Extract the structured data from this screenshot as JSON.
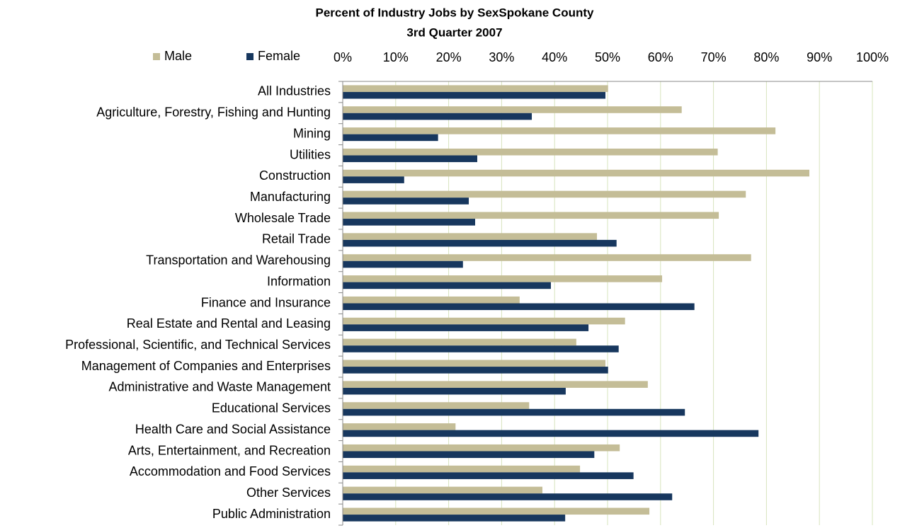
{
  "chart_data": {
    "type": "hbar",
    "title": "Percent of Industry Jobs by SexSpokane County",
    "subtitle": "3rd Quarter 2007",
    "categories": [
      "All Industries",
      "Agriculture, Forestry, Fishing and Hunting",
      "Mining",
      "Utilities",
      "Construction",
      "Manufacturing",
      "Wholesale Trade",
      "Retail Trade",
      "Transportation and Warehousing",
      "Information",
      "Finance and Insurance",
      "Real Estate and Rental and Leasing",
      "Professional, Scientific, and Technical Services",
      "Management of Companies and Enterprises",
      "Administrative and Waste Management",
      "Educational Services",
      "Health Care and Social Assistance",
      "Arts, Entertainment, and Recreation",
      "Accommodation and Food Services",
      "Other Services",
      "Public Administration"
    ],
    "series": [
      {
        "name": "Male",
        "color": "#c4bd97",
        "values": [
          50.1,
          64.0,
          81.7,
          70.8,
          88.1,
          76.1,
          71.0,
          48.0,
          77.1,
          60.3,
          33.4,
          53.3,
          44.1,
          49.6,
          57.6,
          35.2,
          21.3,
          52.3,
          44.8,
          37.7,
          57.9
        ]
      },
      {
        "name": "Female",
        "color": "#17375e",
        "values": [
          49.6,
          35.7,
          18.0,
          25.4,
          11.6,
          23.8,
          25.0,
          51.7,
          22.7,
          39.3,
          66.4,
          46.4,
          52.1,
          50.1,
          42.1,
          64.6,
          78.5,
          47.5,
          54.9,
          62.2,
          42.0
        ]
      }
    ],
    "xlim": [
      0,
      100
    ],
    "xticks": [
      {
        "value": 0,
        "label": "0%"
      },
      {
        "value": 10,
        "label": "10%"
      },
      {
        "value": 20,
        "label": "20%"
      },
      {
        "value": 30,
        "label": "30%"
      },
      {
        "value": 40,
        "label": "40%"
      },
      {
        "value": 50,
        "label": "50%"
      },
      {
        "value": 60,
        "label": "60%"
      },
      {
        "value": 70,
        "label": "70%"
      },
      {
        "value": 80,
        "label": "80%"
      },
      {
        "value": 90,
        "label": "90%"
      },
      {
        "value": 100,
        "label": "100%"
      }
    ],
    "grid": true,
    "grid_color": "#d7e4bd",
    "legend": "top-left"
  }
}
